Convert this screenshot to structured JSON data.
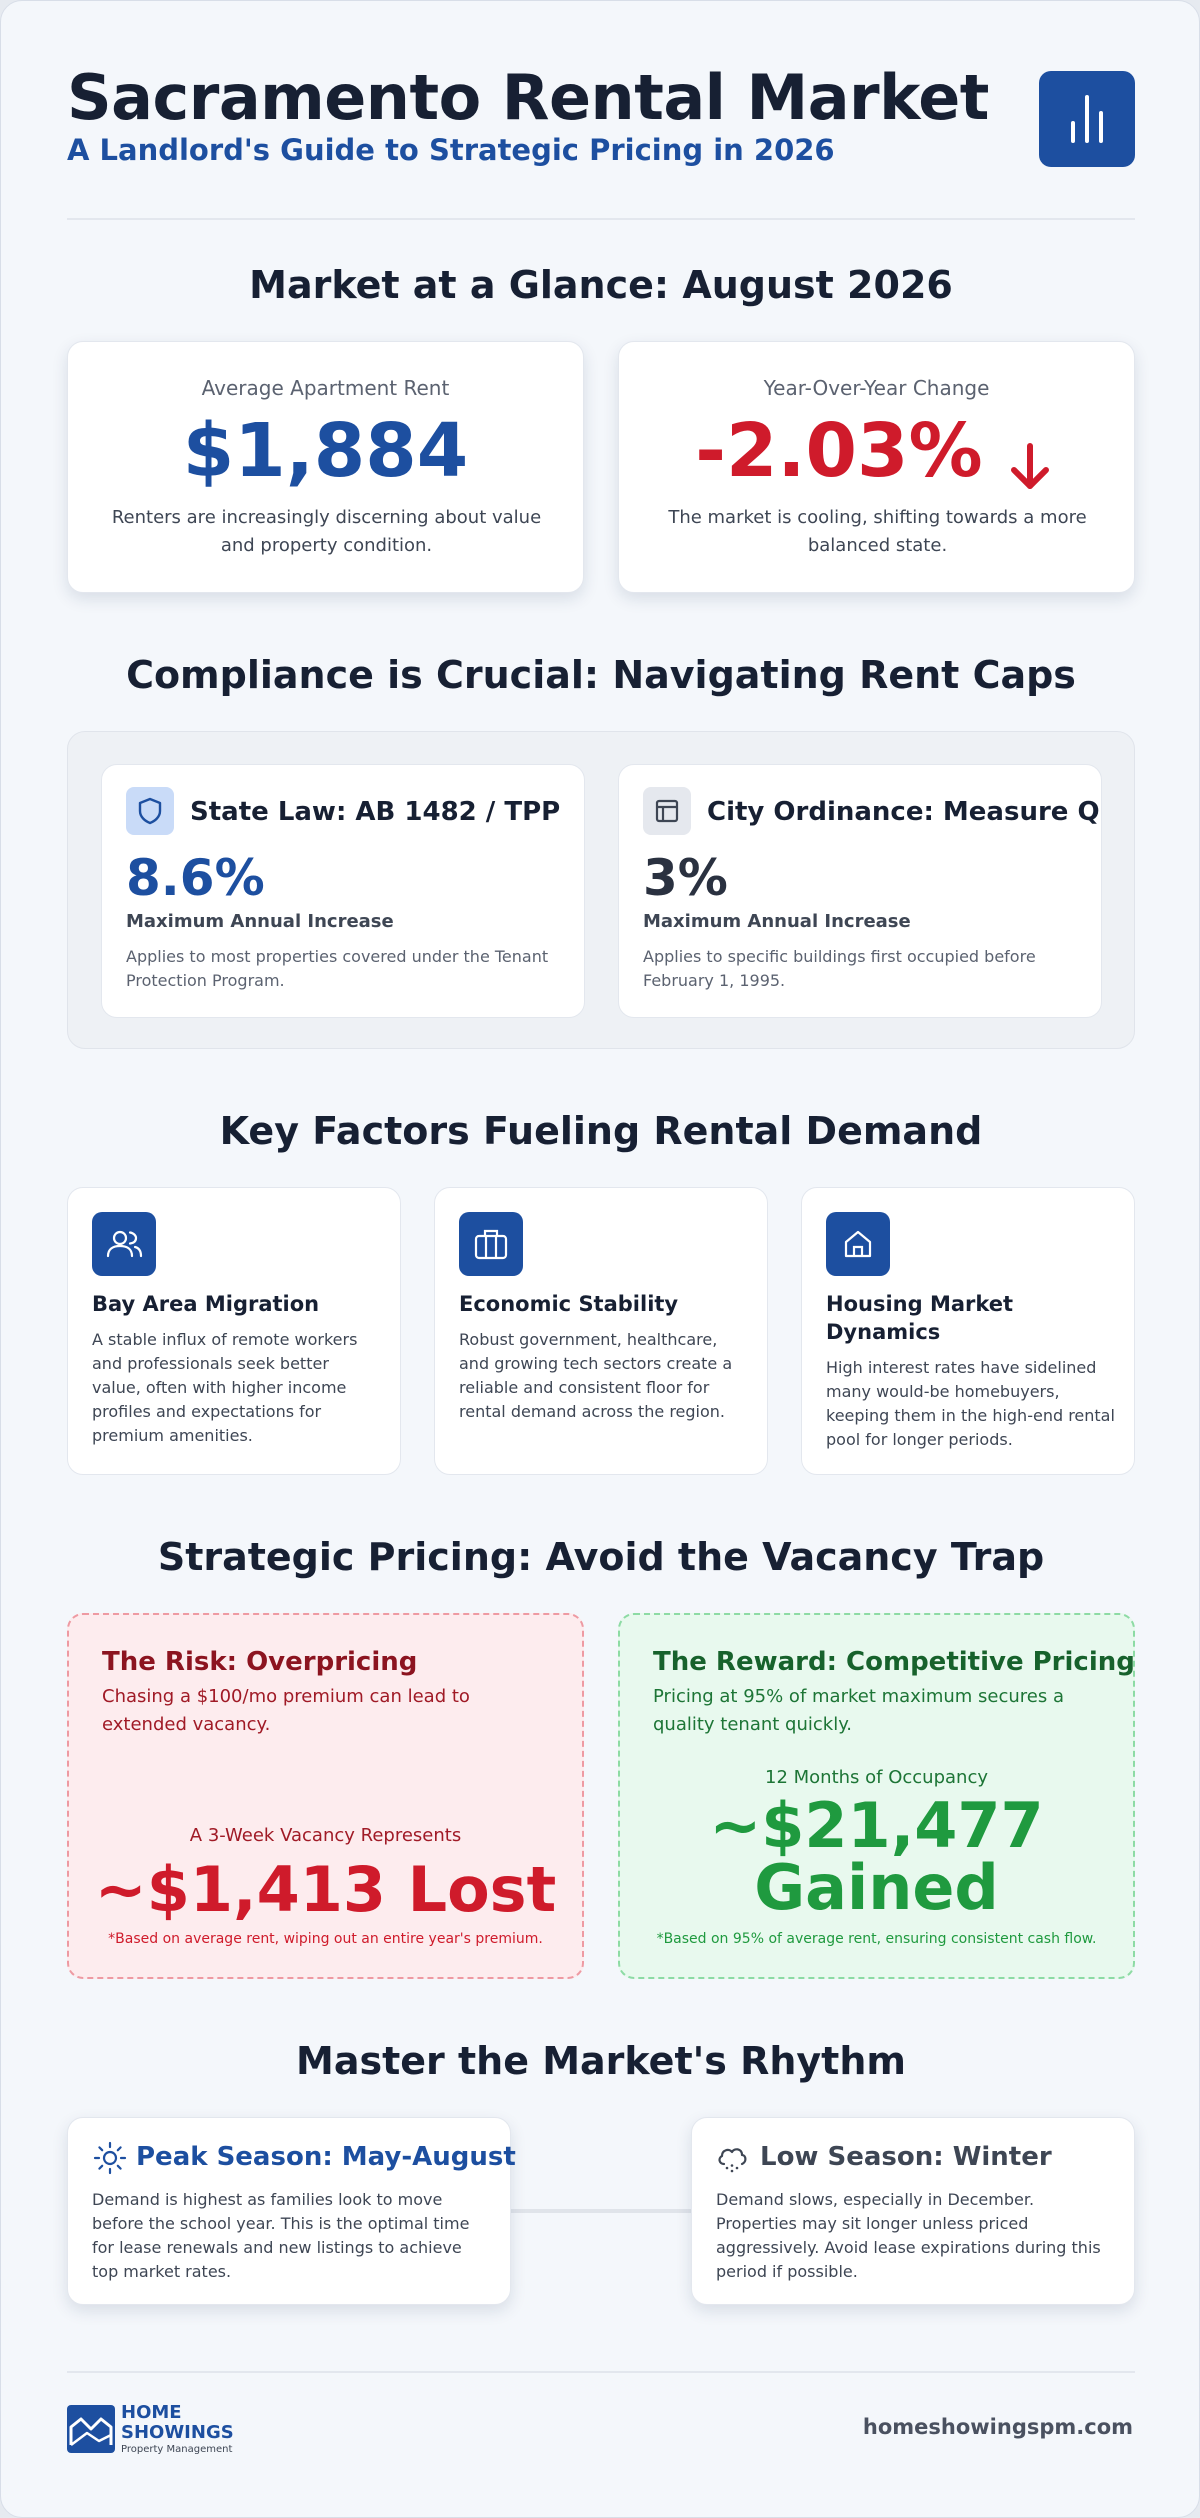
{
  "header": {
    "title": "Sacramento Rental Market",
    "subtitle": "A Landlord's Guide to Strategic Pricing in 2026",
    "logo_icon": "bar-chart-icon"
  },
  "glance": {
    "title": "Market at a Glance: August 2026",
    "cards": [
      {
        "label": "Average Apartment Rent",
        "value": "$1,884",
        "description": "Renters are increasingly discerning about value and property condition."
      },
      {
        "label": "Year-Over-Year Change",
        "value": "-2.03%",
        "trend_icon": "arrow-down-icon",
        "description": "The market is cooling, shifting towards a more balanced state."
      }
    ]
  },
  "compliance": {
    "title": "Compliance is Crucial: Navigating Rent Caps",
    "items": [
      {
        "icon": "shield-icon",
        "heading": "State Law: AB 1482 / TPP",
        "value": "8.6%",
        "sublabel": "Maximum Annual Increase",
        "description": "Applies to most properties covered under the Tenant Protection Program."
      },
      {
        "icon": "building-icon",
        "heading": "City Ordinance: Measure Q",
        "value": "3%",
        "sublabel": "Maximum Annual Increase",
        "description": "Applies to specific buildings first occupied before February 1, 1995."
      }
    ]
  },
  "factors": {
    "title": "Key Factors Fueling Rental Demand",
    "items": [
      {
        "icon": "users-icon",
        "title": "Bay Area Migration",
        "description": "A stable influx of remote workers and professionals seek better value, often with higher income profiles and expectations for premium amenities."
      },
      {
        "icon": "briefcase-icon",
        "title": "Economic Stability",
        "description": "Robust government, healthcare, and growing tech sectors create a reliable and consistent floor for rental demand across the region."
      },
      {
        "icon": "home-icon",
        "title": "Housing Market Dynamics",
        "description": "High interest rates have sidelined many would-be homebuyers, keeping them in the high-end rental pool for longer periods."
      }
    ]
  },
  "pricing": {
    "title": "Strategic Pricing: Avoid the Vacancy Trap",
    "risk": {
      "title": "The Risk: Overpricing",
      "description": "Chasing a $100/mo premium can lead to extended vacancy.",
      "label": "A 3-Week Vacancy Represents",
      "value": "~$1,413 Lost",
      "note": "*Based on average rent, wiping out an entire year's premium."
    },
    "reward": {
      "title": "The Reward: Competitive Pricing",
      "description": "Pricing at 95% of market maximum secures a quality tenant quickly.",
      "label": "12 Months of Occupancy",
      "value_line1": "~$21,477",
      "value_line2": "Gained",
      "note": "*Based on 95% of average rent, ensuring consistent cash flow."
    }
  },
  "rhythm": {
    "title": "Master the Market's Rhythm",
    "peak": {
      "icon": "sun-icon",
      "title": "Peak Season: May-August",
      "description": "Demand is highest as families look to move before the school year. This is the optimal time for lease renewals and new listings to achieve top market rates."
    },
    "low": {
      "icon": "cloud-snow-icon",
      "title": "Low Season: Winter",
      "description": "Demand slows, especially in December. Properties may sit longer unless priced aggressively. Avoid lease expirations during this period if possible."
    }
  },
  "footer": {
    "brand_line1": "HOME",
    "brand_line2": "SHOWINGS",
    "brand_tagline": "Property Management",
    "url": "homeshowingspm.com"
  },
  "colors": {
    "brand_blue": "#1d4fa0",
    "negative_red": "#cf1b2b",
    "positive_green": "#1f9a3f",
    "dark_text": "#172033"
  }
}
